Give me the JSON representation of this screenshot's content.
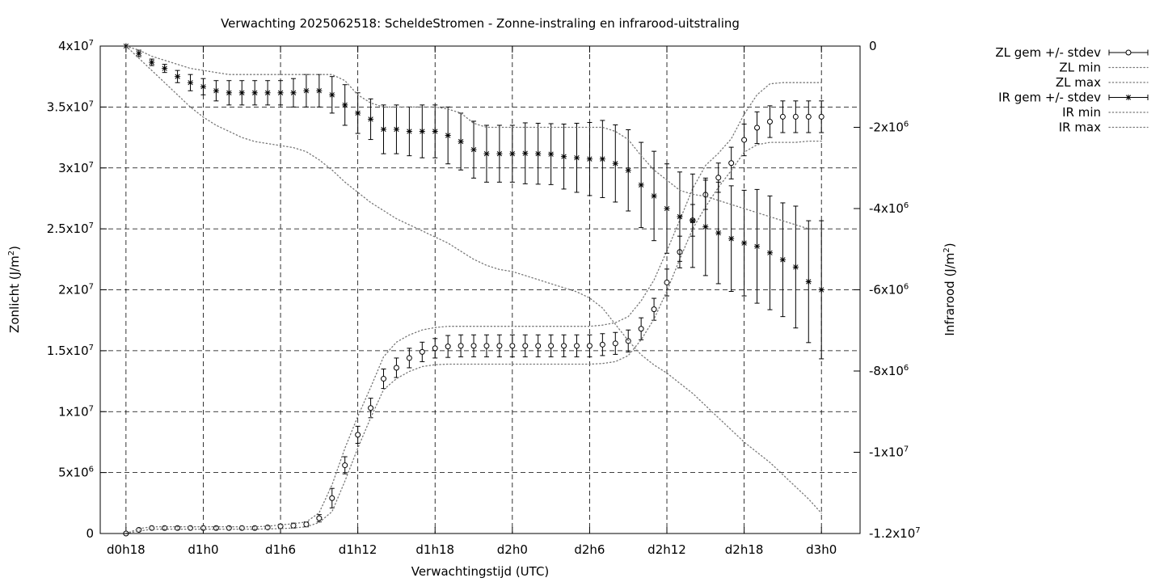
{
  "chart_data": {
    "type": "line",
    "title": "Verwachting 2025062518: ScheldeStromen - Zonne-instraling en infrarood-uitstraling",
    "xlabel": "Verwachtingstijd (UTC)",
    "ylabel": "Zonlicht (J/m²)",
    "ylabel_base": "Zonlicht (J/m",
    "ylabel_sup": "2",
    "ylabel_tail": ")",
    "y2label": "Infrarood (J/m²)",
    "y2label_base": "Infrarood (J/m",
    "y2label_sup": "2",
    "y2label_tail": ")",
    "grid": true,
    "legend_position": "outside-right",
    "x_unit": "hours since d0h18 (d0h18=0, d1h0=6, d1h6=12, ...)",
    "xlim": [
      -2,
      57
    ],
    "ylim": [
      0,
      40000000
    ],
    "y2lim": [
      -12000000,
      0
    ],
    "x_ticks": [
      {
        "x": 0,
        "label": "d0h18"
      },
      {
        "x": 6,
        "label": "d1h0"
      },
      {
        "x": 12,
        "label": "d1h6"
      },
      {
        "x": 18,
        "label": "d1h12"
      },
      {
        "x": 24,
        "label": "d1h18"
      },
      {
        "x": 30,
        "label": "d2h0"
      },
      {
        "x": 36,
        "label": "d2h6"
      },
      {
        "x": 42,
        "label": "d2h12"
      },
      {
        "x": 48,
        "label": "d2h18"
      },
      {
        "x": 54,
        "label": "d3h0"
      }
    ],
    "y_ticks": [
      {
        "v": 0,
        "base": "0",
        "exp": ""
      },
      {
        "v": 5000000,
        "base": "5x10",
        "exp": "6"
      },
      {
        "v": 10000000,
        "base": "1x10",
        "exp": "7"
      },
      {
        "v": 15000000,
        "base": "1.5x10",
        "exp": "7"
      },
      {
        "v": 20000000,
        "base": "2x10",
        "exp": "7"
      },
      {
        "v": 25000000,
        "base": "2.5x10",
        "exp": "7"
      },
      {
        "v": 30000000,
        "base": "3x10",
        "exp": "7"
      },
      {
        "v": 35000000,
        "base": "3.5x10",
        "exp": "7"
      },
      {
        "v": 40000000,
        "base": "4x10",
        "exp": "7"
      }
    ],
    "y2_ticks": [
      {
        "v": 0,
        "base": "0",
        "exp": ""
      },
      {
        "v": -2000000,
        "base": "-2x10",
        "exp": "6"
      },
      {
        "v": -4000000,
        "base": "-4x10",
        "exp": "6"
      },
      {
        "v": -6000000,
        "base": "-6x10",
        "exp": "6"
      },
      {
        "v": -8000000,
        "base": "-8x10",
        "exp": "6"
      },
      {
        "v": -10000000,
        "base": "-1x10",
        "exp": "7"
      },
      {
        "v": -12000000,
        "base": "-1.2x10",
        "exp": "7"
      }
    ],
    "x": [
      0,
      1,
      2,
      3,
      4,
      5,
      6,
      7,
      8,
      9,
      10,
      11,
      12,
      13,
      14,
      15,
      16,
      17,
      18,
      19,
      20,
      21,
      22,
      23,
      24,
      25,
      26,
      27,
      28,
      29,
      30,
      31,
      32,
      33,
      34,
      35,
      36,
      37,
      38,
      39,
      40,
      41,
      42,
      43,
      44,
      45,
      46,
      47,
      48,
      49,
      50,
      51,
      52,
      53,
      54
    ],
    "series": [
      {
        "name": "ZL gem +/- stdev",
        "axis": "y1",
        "style": "points-errorbars",
        "marker": "circle",
        "mean": [
          0,
          300000,
          450000,
          450000,
          450000,
          450000,
          450000,
          450000,
          450000,
          450000,
          450000,
          500000,
          600000,
          650000,
          750000,
          1250000,
          2900000,
          5600000,
          8100000,
          10300000,
          12700000,
          13600000,
          14400000,
          14900000,
          15200000,
          15350000,
          15400000,
          15400000,
          15400000,
          15400000,
          15400000,
          15400000,
          15400000,
          15400000,
          15400000,
          15400000,
          15400000,
          15500000,
          15600000,
          15800000,
          16800000,
          18400000,
          20600000,
          23100000,
          25700000,
          27800000,
          29200000,
          30400000,
          32300000,
          33300000,
          33800000,
          34200000,
          34200000,
          34200000,
          34200000
        ],
        "stdev": [
          0,
          100000,
          100000,
          100000,
          100000,
          100000,
          100000,
          100000,
          100000,
          100000,
          100000,
          100000,
          150000,
          200000,
          200000,
          300000,
          800000,
          700000,
          700000,
          800000,
          800000,
          800000,
          800000,
          800000,
          800000,
          900000,
          900000,
          900000,
          900000,
          900000,
          900000,
          900000,
          900000,
          900000,
          900000,
          900000,
          900000,
          900000,
          900000,
          900000,
          900000,
          900000,
          1100000,
          1300000,
          1300000,
          1200000,
          1200000,
          1300000,
          1300000,
          1300000,
          1300000,
          1300000,
          1300000,
          1300000,
          1300000
        ]
      },
      {
        "name": "ZL min",
        "axis": "y1",
        "style": "dotted-line",
        "values": [
          0,
          200000,
          350000,
          350000,
          350000,
          350000,
          350000,
          350000,
          350000,
          350000,
          350000,
          380000,
          400000,
          450000,
          550000,
          900000,
          1800000,
          4300000,
          7000000,
          9500000,
          11800000,
          12700000,
          13300000,
          13700000,
          13850000,
          13900000,
          13900000,
          13900000,
          13900000,
          13900000,
          13900000,
          13900000,
          13900000,
          13900000,
          13900000,
          13900000,
          13900000,
          13950000,
          14100000,
          14600000,
          15900000,
          17600000,
          19900000,
          22500000,
          25000000,
          26800000,
          28400000,
          29800000,
          31300000,
          31900000,
          32100000,
          32100000,
          32100000,
          32200000,
          32200000
        ]
      },
      {
        "name": "ZL max",
        "axis": "y1",
        "style": "dotted-line",
        "values": [
          0,
          400000,
          550000,
          550000,
          550000,
          550000,
          550000,
          550000,
          550000,
          550000,
          550000,
          600000,
          700000,
          800000,
          950000,
          1700000,
          4000000,
          7000000,
          9600000,
          12000000,
          14500000,
          15700000,
          16300000,
          16700000,
          16900000,
          17000000,
          17000000,
          17000000,
          17000000,
          17000000,
          17000000,
          17000000,
          17000000,
          17000000,
          17000000,
          17000000,
          17000000,
          17100000,
          17300000,
          17800000,
          19100000,
          20800000,
          23200000,
          25700000,
          28300000,
          30200000,
          31200000,
          32400000,
          34400000,
          36000000,
          36900000,
          37000000,
          37000000,
          37000000,
          37000000
        ]
      },
      {
        "name": "IR gem +/- stdev",
        "axis": "y2",
        "style": "points-errorbars",
        "marker": "star",
        "mean": [
          0,
          -180000,
          -400000,
          -550000,
          -750000,
          -900000,
          -1000000,
          -1100000,
          -1150000,
          -1150000,
          -1150000,
          -1150000,
          -1150000,
          -1150000,
          -1100000,
          -1100000,
          -1200000,
          -1450000,
          -1650000,
          -1800000,
          -2050000,
          -2050000,
          -2100000,
          -2100000,
          -2100000,
          -2200000,
          -2350000,
          -2550000,
          -2650000,
          -2650000,
          -2650000,
          -2640000,
          -2650000,
          -2660000,
          -2720000,
          -2750000,
          -2780000,
          -2780000,
          -2890000,
          -3060000,
          -3420000,
          -3690000,
          -4000000,
          -4200000,
          -4300000,
          -4450000,
          -4600000,
          -4740000,
          -4850000,
          -4930000,
          -5090000,
          -5260000,
          -5440000,
          -5800000,
          -6000000
        ],
        "stdev": [
          0,
          80000,
          80000,
          100000,
          150000,
          200000,
          200000,
          250000,
          300000,
          300000,
          300000,
          300000,
          300000,
          350000,
          400000,
          400000,
          450000,
          500000,
          500000,
          500000,
          600000,
          600000,
          600000,
          650000,
          650000,
          700000,
          700000,
          700000,
          700000,
          700000,
          700000,
          750000,
          750000,
          750000,
          800000,
          850000,
          900000,
          950000,
          950000,
          1000000,
          1050000,
          1100000,
          1100000,
          1100000,
          1150000,
          1200000,
          1250000,
          1300000,
          1300000,
          1400000,
          1400000,
          1400000,
          1500000,
          1500000,
          1700000
        ]
      },
      {
        "name": "IR min",
        "axis": "y2",
        "style": "dotted-line",
        "values": [
          0,
          -300000,
          -600000,
          -900000,
          -1200000,
          -1500000,
          -1750000,
          -1950000,
          -2100000,
          -2250000,
          -2350000,
          -2400000,
          -2450000,
          -2500000,
          -2600000,
          -2800000,
          -3050000,
          -3350000,
          -3600000,
          -3850000,
          -4050000,
          -4250000,
          -4400000,
          -4550000,
          -4700000,
          -4850000,
          -5050000,
          -5250000,
          -5400000,
          -5500000,
          -5550000,
          -5650000,
          -5750000,
          -5850000,
          -5950000,
          -6050000,
          -6200000,
          -6450000,
          -6850000,
          -7250000,
          -7600000,
          -7850000,
          -8050000,
          -8300000,
          -8550000,
          -8850000,
          -9150000,
          -9450000,
          -9750000,
          -10000000,
          -10250000,
          -10550000,
          -10850000,
          -11150000,
          -11500000
        ]
      },
      {
        "name": "IR max",
        "axis": "y2",
        "style": "dotted-line",
        "values": [
          0,
          -100000,
          -250000,
          -350000,
          -450000,
          -550000,
          -600000,
          -650000,
          -700000,
          -700000,
          -700000,
          -700000,
          -700000,
          -700000,
          -700000,
          -700000,
          -700000,
          -850000,
          -1200000,
          -1400000,
          -1500000,
          -1500000,
          -1500000,
          -1500000,
          -1500000,
          -1550000,
          -1650000,
          -1900000,
          -2000000,
          -2000000,
          -2000000,
          -2000000,
          -2000000,
          -2000000,
          -2000000,
          -2000000,
          -2000000,
          -2000000,
          -2100000,
          -2300000,
          -2700000,
          -3050000,
          -3300000,
          -3550000,
          -3650000,
          -3700000,
          -3800000,
          -3900000,
          -4000000,
          -4100000,
          -4200000,
          -4300000,
          -4400000,
          -4500000,
          -4500000
        ]
      }
    ],
    "legend": [
      {
        "label": "ZL gem +/- stdev",
        "sample": "errorbar-circle"
      },
      {
        "label": "ZL min",
        "sample": "dotted"
      },
      {
        "label": "ZL max",
        "sample": "dotted"
      },
      {
        "label": "IR gem +/- stdev",
        "sample": "errorbar-star"
      },
      {
        "label": "IR min",
        "sample": "dotted"
      },
      {
        "label": "IR max",
        "sample": "dotted"
      }
    ]
  }
}
